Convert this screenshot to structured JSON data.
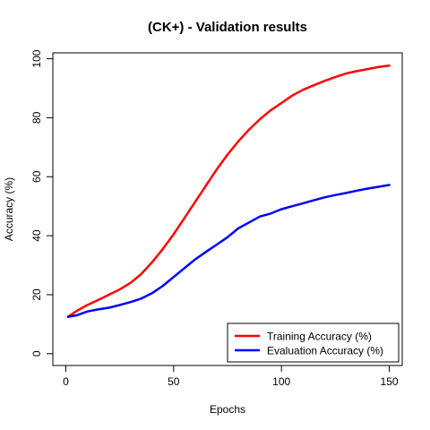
{
  "chart_data": {
    "type": "line",
    "title": "(CK+) - Validation results",
    "xlabel": "Epochs",
    "ylabel": "Accuracy (%)",
    "xlim": [
      -6,
      156
    ],
    "ylim": [
      -4,
      102
    ],
    "x_ticks": [
      0,
      50,
      100,
      150
    ],
    "y_ticks": [
      0,
      20,
      40,
      60,
      80,
      100
    ],
    "grid": false,
    "legend_position": "bottom-right",
    "series": [
      {
        "name": "Training Accuracy (%)",
        "color": "#ff0000",
        "x": [
          1,
          5,
          10,
          15,
          20,
          25,
          30,
          35,
          40,
          45,
          50,
          55,
          60,
          65,
          70,
          75,
          80,
          85,
          90,
          95,
          100,
          105,
          110,
          115,
          120,
          125,
          130,
          135,
          140,
          145,
          150
        ],
        "values": [
          12.5,
          14.5,
          16.5,
          18.2,
          20,
          21.8,
          24,
          27,
          31,
          35.5,
          40.5,
          46,
          51.5,
          57,
          62.5,
          67.5,
          72,
          76,
          79.5,
          82.5,
          85,
          87.5,
          89.5,
          91,
          92.5,
          93.8,
          95,
          95.8,
          96.5,
          97.2,
          97.7
        ]
      },
      {
        "name": "Evaluation Accuracy (%)",
        "color": "#0000ff",
        "x": [
          1,
          5,
          10,
          15,
          20,
          25,
          30,
          35,
          40,
          45,
          50,
          55,
          60,
          65,
          70,
          75,
          80,
          85,
          90,
          95,
          100,
          105,
          110,
          115,
          120,
          125,
          130,
          135,
          140,
          145,
          150
        ],
        "values": [
          12.5,
          13,
          14.3,
          15,
          15.6,
          16.5,
          17.5,
          18.7,
          20.5,
          23,
          26,
          29,
          32,
          34.5,
          37,
          39.5,
          42.5,
          44.5,
          46.5,
          47.5,
          49,
          50,
          51,
          52,
          53,
          53.8,
          54.5,
          55.3,
          56,
          56.6,
          57.2
        ]
      }
    ]
  }
}
